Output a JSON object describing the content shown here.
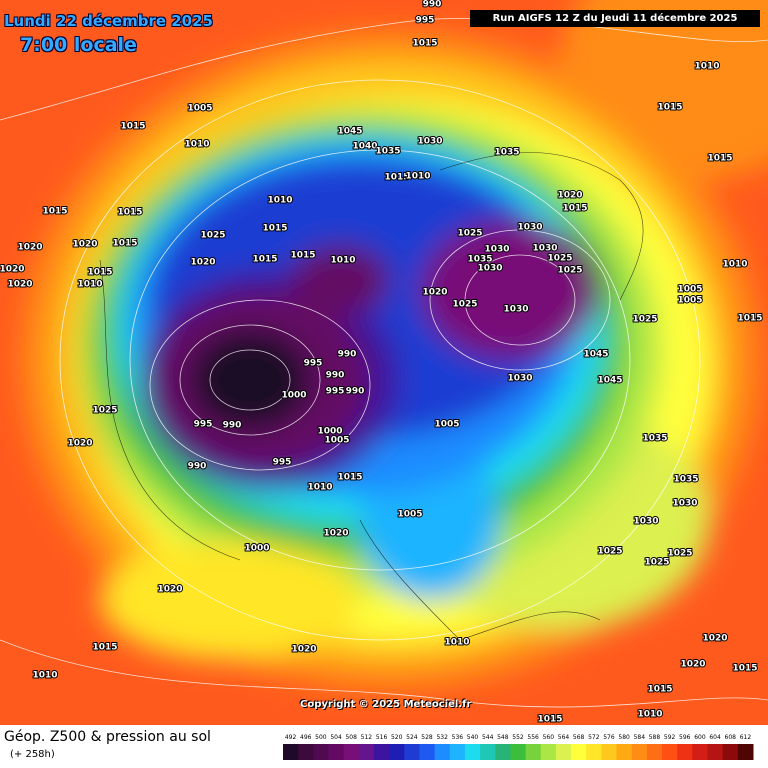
{
  "header": {
    "title": "Lundi 22 décembre 2025",
    "subtitle": "7:00 locale",
    "run": "Run AIGFS 12 Z du Jeudi 11 décembre 2025"
  },
  "map": {
    "copyright": "Copyright © 2025 Meteociel.fr",
    "pressure_labels": [
      "990",
      "995",
      "1015",
      "1010",
      "1005",
      "1015",
      "1010",
      "1045",
      "1040",
      "1035",
      "1030",
      "1035",
      "1015",
      "1015",
      "1015",
      "1010",
      "1020",
      "1015",
      "1015",
      "1015",
      "1010",
      "1025",
      "1015",
      "1020",
      "1020",
      "1015",
      "1025",
      "1030",
      "1030",
      "1030",
      "1035",
      "1030",
      "1025",
      "1025",
      "1020",
      "1015",
      "1015",
      "1010",
      "1020",
      "1020",
      "1010",
      "1015",
      "1010",
      "1005",
      "1005",
      "1020",
      "1025",
      "1030",
      "1025",
      "1015",
      "995",
      "990",
      "990",
      "1000",
      "995",
      "990",
      "995",
      "990",
      "1045",
      "1045",
      "1030",
      "1005",
      "1000",
      "1005",
      "990",
      "995",
      "1015",
      "1010",
      "1025",
      "1020",
      "1035",
      "1035",
      "1030",
      "1030",
      "1005",
      "1020",
      "1000",
      "1025",
      "1025",
      "1025",
      "1020",
      "1015",
      "1020",
      "1010",
      "1010",
      "1020",
      "1020",
      "1015",
      "1015",
      "1010",
      "1015"
    ]
  },
  "footer": {
    "title": "Géop. Z500 & pression au sol",
    "lead_time": "(+ 258h)"
  },
  "colorbar": {
    "ticks": [
      492,
      496,
      500,
      504,
      508,
      512,
      516,
      520,
      524,
      528,
      532,
      536,
      540,
      544,
      548,
      552,
      556,
      560,
      564,
      568,
      572,
      576,
      580,
      584,
      588,
      592,
      596,
      600,
      604,
      608,
      612
    ],
    "colors": [
      "#1e0a28",
      "#3c0a3c",
      "#500a50",
      "#640a64",
      "#780f78",
      "#64148c",
      "#3c14a0",
      "#1e1eb4",
      "#1e3cd2",
      "#1e5af0",
      "#1e8cff",
      "#1eb4ff",
      "#1edcf0",
      "#1ec8b4",
      "#28b478",
      "#3cbe3c",
      "#78d23c",
      "#aae646",
      "#dcf050",
      "#ffff3c",
      "#ffe628",
      "#ffc81e",
      "#ffaa14",
      "#ff8c14",
      "#ff6e14",
      "#ff5014",
      "#f03214",
      "#d21e14",
      "#b41414",
      "#8c0a0a",
      "#500505"
    ]
  }
}
